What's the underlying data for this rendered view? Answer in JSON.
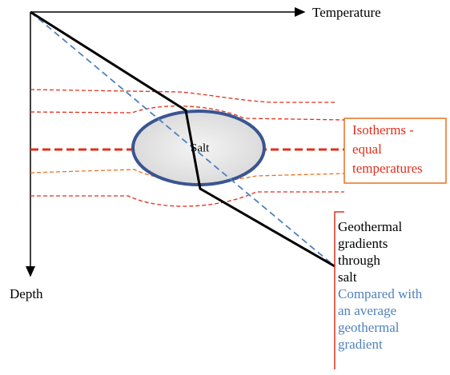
{
  "axes": {
    "x_label": "Temperature",
    "y_label": "Depth"
  },
  "salt_label": "Salt",
  "isotherms_label": {
    "lines": [
      "Isotherms -",
      "equal",
      "temperatures"
    ]
  },
  "gradients_label": {
    "salt_lines": [
      "Geothermal",
      "gradients",
      "through",
      "salt"
    ],
    "average_lines": [
      "Compared with",
      "an average",
      "geothermal",
      "gradient"
    ]
  }
}
